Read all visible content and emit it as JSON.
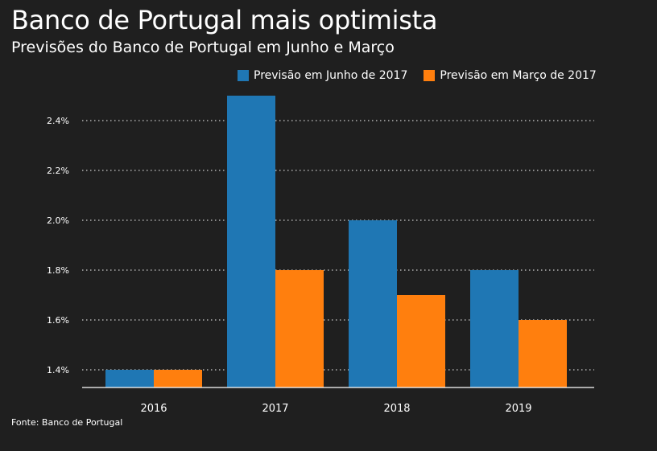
{
  "chart_data": {
    "type": "bar",
    "title": "Banco de Portugal mais optimista",
    "subtitle": "Previsões do Banco de Portugal em Junho e Março",
    "xlabel": "",
    "ylabel": "",
    "categories": [
      "2016",
      "2017",
      "2018",
      "2019"
    ],
    "series": [
      {
        "name": "Previsão em Junho de 2017",
        "color": "#1f77b4",
        "values": [
          1.4,
          2.5,
          2.0,
          1.8
        ]
      },
      {
        "name": "Previsão em Março de 2017",
        "color": "#ff7f0e",
        "values": [
          1.4,
          1.8,
          1.7,
          1.6
        ]
      }
    ],
    "yticks": [
      1.4,
      1.6,
      1.8,
      2.0,
      2.2,
      2.4
    ],
    "ytick_labels": [
      "1.4%",
      "1.6%",
      "1.8%",
      "2.0%",
      "2.2%",
      "2.4%"
    ],
    "ylim": [
      1.33,
      2.6
    ],
    "grid": true,
    "legend_position": "top-right",
    "source": "Fonte: Banco de Portugal"
  }
}
